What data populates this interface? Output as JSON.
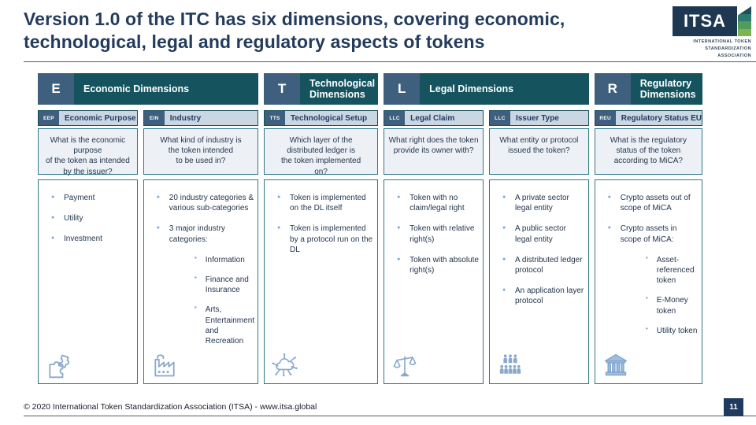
{
  "slide": {
    "title": "Version 1.0 of the ITC has six dimensions, covering economic,\ntechnological, legal and regulatory aspects of tokens",
    "footer_text": "© 2020 International Token Standardization Association (ITSA) - www.itsa.global",
    "page_number": "11"
  },
  "logo": {
    "acronym": "ITSA",
    "subtitle_lines": [
      "INTERNATIONAL TOKEN",
      "STANDARDIZATION",
      "ASSOCIATION"
    ],
    "stripe_colors": [
      "#1F4F5E",
      "#2C7A6E",
      "#4F9C5D",
      "#7FB353"
    ]
  },
  "groups": [
    {
      "letter": "E",
      "label": "Economic Dimensions",
      "span": 2
    },
    {
      "letter": "T",
      "label": "Technological Dimensions",
      "span": 1
    },
    {
      "letter": "L",
      "label": "Legal Dimensions",
      "span": 2
    },
    {
      "letter": "R",
      "label": "Regulatory Dimensions",
      "span": 1
    }
  ],
  "columns": [
    {
      "code": "EEP",
      "name": "Economic Purpose",
      "question": "What is the economic purpose\nof the token as intended\nby the issuer?",
      "bullets": [
        {
          "text": "Payment"
        },
        {
          "text": "Utility"
        },
        {
          "text": "Investment"
        }
      ],
      "icon": "puzzle-icon"
    },
    {
      "code": "EIN",
      "name": "Industry",
      "question": "What kind of industry is\nthe token intended\nto be used in?",
      "bullets": [
        {
          "text": "20 industry categories & various sub-categories"
        },
        {
          "text": "3 major industry categories:",
          "sub": [
            "Information",
            "Finance and Insurance",
            "Arts, Entertainment and Recreation"
          ]
        }
      ],
      "icon": "factory-icon"
    },
    {
      "code": "TTS",
      "name": "Technological Setup",
      "question": "Which layer of the\ndistributed ledger is\nthe token implemented\non?",
      "bullets": [
        {
          "text": "Token is implemented on the DL itself"
        },
        {
          "text": "Token is implemented by a protocol run on the DL"
        }
      ],
      "icon": "cloud-network-icon"
    },
    {
      "code": "LLC",
      "name": "Legal Claim",
      "question": "What right does the token\nprovide its owner with?",
      "bullets": [
        {
          "text": "Token with no claim/legal right"
        },
        {
          "text": "Token with relative right(s)"
        },
        {
          "text": "Token with absolute right(s)"
        }
      ],
      "icon": "scales-icon"
    },
    {
      "code": "LLC",
      "name": "Issuer Type",
      "question": "What entity or protocol\nissued the token?",
      "bullets": [
        {
          "text": "A private sector legal entity"
        },
        {
          "text": "A public sector legal entity"
        },
        {
          "text": "A distributed ledger protocol"
        },
        {
          "text": "An application layer protocol"
        }
      ],
      "icon": "people-group-icon"
    },
    {
      "code": "REU",
      "name": "Regulatory Status EU",
      "question": "What is the regulatory\nstatus of the token\naccording to MiCA?",
      "bullets": [
        {
          "text": "Crypto assets out of scope of MiCA"
        },
        {
          "text": "Crypto assets in scope of MiCA:",
          "sub": [
            "Asset-referenced token",
            "E-Money token",
            "Utility token"
          ]
        }
      ],
      "icon": "bank-icon"
    }
  ],
  "colors": {
    "header_teal": "#15535E",
    "badge_slate": "#3E5F7E",
    "subheader_bg": "#CBD6E3",
    "box_border_teal": "#2F7886",
    "bullet_blue": "#76A5DC",
    "title_navy": "#233B5C",
    "page_box_navy": "#1E3A5F"
  }
}
